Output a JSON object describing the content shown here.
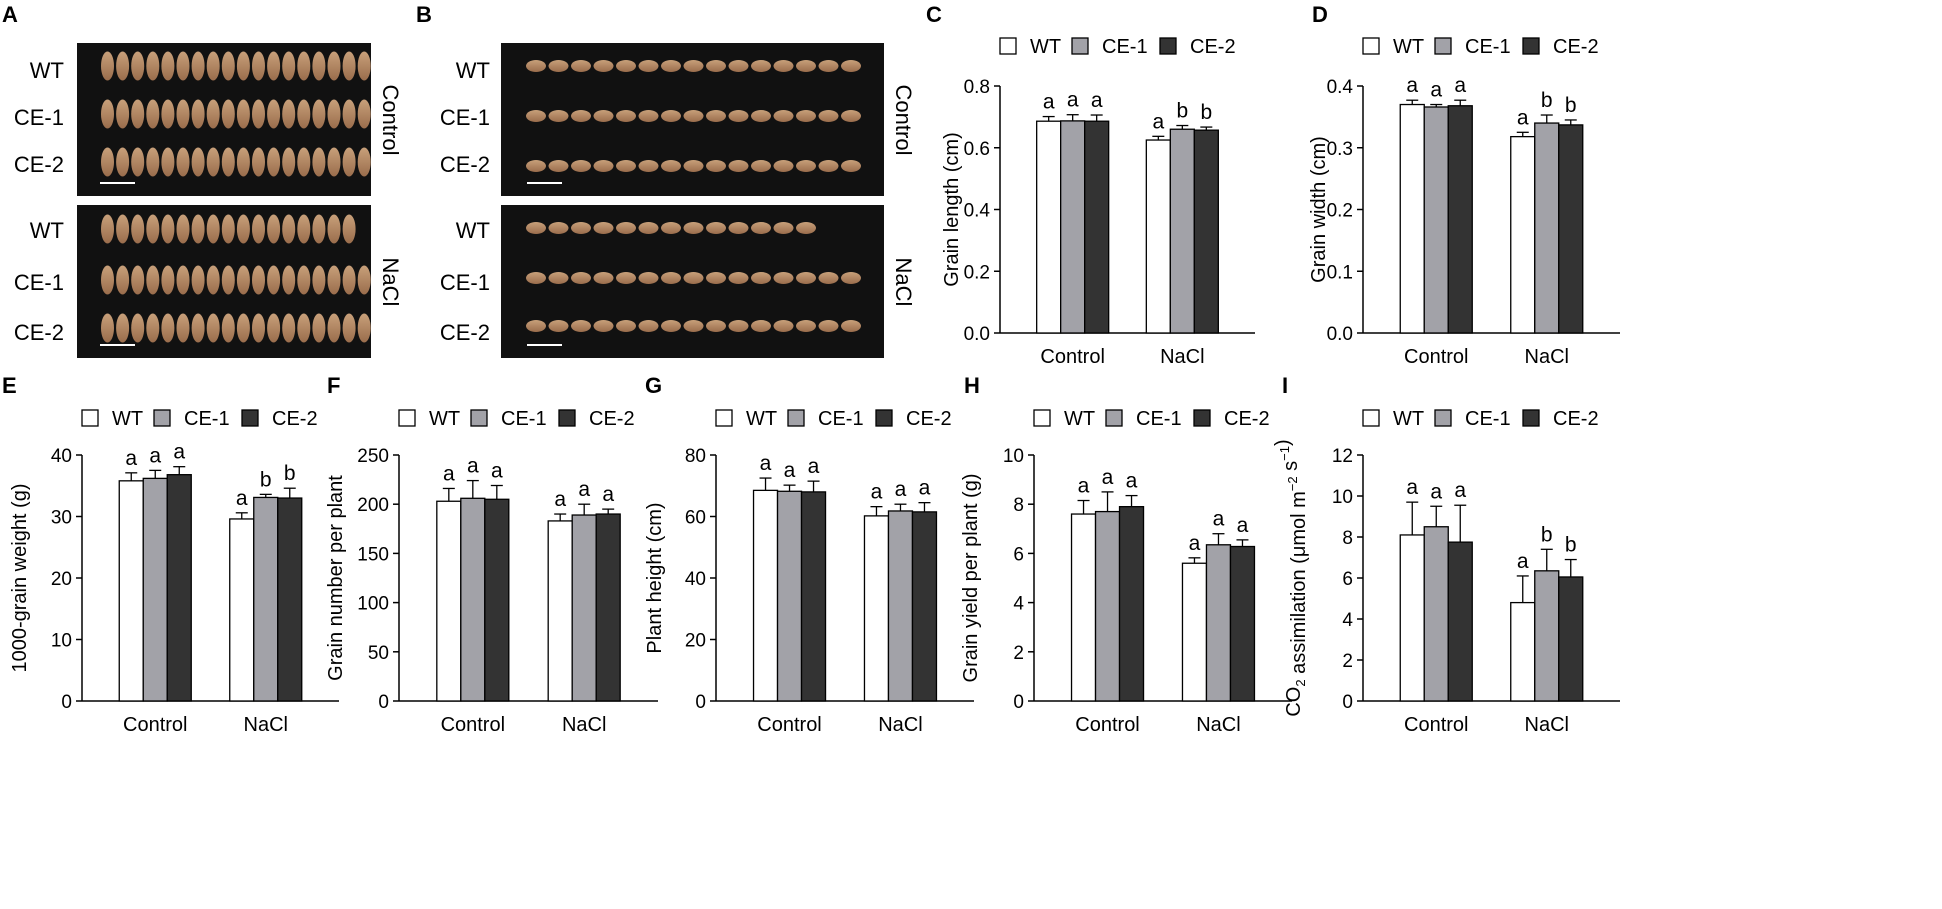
{
  "colors": {
    "WT": "#ffffff",
    "CE-1": "#a2a2a8",
    "CE-2": "#333333",
    "photo_bg": "#111111",
    "grain": "#c8a07a",
    "grain_dark": "#9a6d4c"
  },
  "photo_panels": [
    {
      "letter": "A",
      "blocks": [
        {
          "condition": "Control",
          "rows": [
            {
              "label": "WT",
              "grains": 18
            },
            {
              "label": "CE-1",
              "grains": 18
            },
            {
              "label": "CE-2",
              "grains": 18
            }
          ]
        },
        {
          "condition": "NaCl",
          "rows": [
            {
              "label": "WT",
              "grains": 17
            },
            {
              "label": "CE-1",
              "grains": 18
            },
            {
              "label": "CE-2",
              "grains": 18
            }
          ]
        }
      ]
    },
    {
      "letter": "B",
      "blocks": [
        {
          "condition": "Control",
          "rows": [
            {
              "label": "WT",
              "grains": 15
            },
            {
              "label": "CE-1",
              "grains": 15
            },
            {
              "label": "CE-2",
              "grains": 15
            }
          ]
        },
        {
          "condition": "NaCl",
          "rows": [
            {
              "label": "WT",
              "grains": 13
            },
            {
              "label": "CE-1",
              "grains": 15
            },
            {
              "label": "CE-2",
              "grains": 15
            }
          ]
        }
      ]
    }
  ],
  "chart_data": [
    {
      "letter": "C",
      "type": "bar",
      "categories": [
        "Control",
        "NaCl"
      ],
      "legend": [
        "WT",
        "CE-1",
        "CE-2"
      ],
      "ylabel": "Grain length (cm)",
      "ylim": [
        0,
        0.8
      ],
      "yticks": [
        "0.0",
        "0.2",
        "0.4",
        "0.6",
        "0.8"
      ],
      "series": [
        {
          "name": "WT",
          "values": [
            0.686,
            0.625
          ],
          "errors": [
            0.015,
            0.012
          ],
          "letters": [
            "a",
            "a"
          ]
        },
        {
          "name": "CE-1",
          "values": [
            0.687,
            0.66
          ],
          "errors": [
            0.02,
            0.012
          ],
          "letters": [
            "a",
            "b"
          ]
        },
        {
          "name": "CE-2",
          "values": [
            0.686,
            0.657
          ],
          "errors": [
            0.02,
            0.01
          ],
          "letters": [
            "a",
            "b"
          ]
        }
      ]
    },
    {
      "letter": "D",
      "type": "bar",
      "categories": [
        "Control",
        "NaCl"
      ],
      "legend": [
        "WT",
        "CE-1",
        "CE-2"
      ],
      "ylabel": "Grain width (cm)",
      "ylim": [
        0,
        0.4
      ],
      "yticks": [
        "0.0",
        "0.1",
        "0.2",
        "0.3",
        "0.4"
      ],
      "series": [
        {
          "name": "WT",
          "values": [
            0.37,
            0.318
          ],
          "errors": [
            0.007,
            0.007
          ],
          "letters": [
            "a",
            "a"
          ]
        },
        {
          "name": "CE-1",
          "values": [
            0.366,
            0.34
          ],
          "errors": [
            0.004,
            0.013
          ],
          "letters": [
            "a",
            "b"
          ]
        },
        {
          "name": "CE-2",
          "values": [
            0.368,
            0.337
          ],
          "errors": [
            0.009,
            0.008
          ],
          "letters": [
            "a",
            "b"
          ]
        }
      ]
    },
    {
      "letter": "E",
      "type": "bar",
      "categories": [
        "Control",
        "NaCl"
      ],
      "legend": [
        "WT",
        "CE-1",
        "CE-2"
      ],
      "ylabel": "1000-grain weight (g)",
      "ylim": [
        0,
        40
      ],
      "yticks": [
        "0",
        "10",
        "20",
        "30",
        "40"
      ],
      "series": [
        {
          "name": "WT",
          "values": [
            35.8,
            29.6
          ],
          "errors": [
            1.3,
            1.0
          ],
          "letters": [
            "a",
            "a"
          ]
        },
        {
          "name": "CE-1",
          "values": [
            36.2,
            33.1
          ],
          "errors": [
            1.3,
            0.5
          ],
          "letters": [
            "a",
            "b"
          ]
        },
        {
          "name": "CE-2",
          "values": [
            36.8,
            33.0
          ],
          "errors": [
            1.3,
            1.6
          ],
          "letters": [
            "a",
            "b"
          ]
        }
      ]
    },
    {
      "letter": "F",
      "type": "bar",
      "categories": [
        "Control",
        "NaCl"
      ],
      "legend": [
        "WT",
        "CE-1",
        "CE-2"
      ],
      "ylabel": "Grain number per plant",
      "ylim": [
        0,
        250
      ],
      "yticks": [
        "0",
        "50",
        "100",
        "150",
        "200",
        "250"
      ],
      "series": [
        {
          "name": "WT",
          "values": [
            203,
            183
          ],
          "errors": [
            13,
            7
          ],
          "letters": [
            "a",
            "a"
          ]
        },
        {
          "name": "CE-1",
          "values": [
            206,
            189
          ],
          "errors": [
            18,
            11
          ],
          "letters": [
            "a",
            "a"
          ]
        },
        {
          "name": "CE-2",
          "values": [
            205,
            190
          ],
          "errors": [
            14,
            5
          ],
          "letters": [
            "a",
            "a"
          ]
        }
      ]
    },
    {
      "letter": "G",
      "type": "bar",
      "categories": [
        "Control",
        "NaCl"
      ],
      "legend": [
        "WT",
        "CE-1",
        "CE-2"
      ],
      "ylabel": "Plant height (cm)",
      "ylim": [
        0,
        80
      ],
      "yticks": [
        "0",
        "20",
        "40",
        "60",
        "80"
      ],
      "series": [
        {
          "name": "WT",
          "values": [
            68.5,
            60.2
          ],
          "errors": [
            4.0,
            3.0
          ],
          "letters": [
            "a",
            "a"
          ]
        },
        {
          "name": "CE-1",
          "values": [
            68.2,
            61.8
          ],
          "errors": [
            2.0,
            2.2
          ],
          "letters": [
            "a",
            "a"
          ]
        },
        {
          "name": "CE-2",
          "values": [
            68.0,
            61.5
          ],
          "errors": [
            3.5,
            3.0
          ],
          "letters": [
            "a",
            "a"
          ]
        }
      ]
    },
    {
      "letter": "H",
      "type": "bar",
      "categories": [
        "Control",
        "NaCl"
      ],
      "legend": [
        "WT",
        "CE-1",
        "CE-2"
      ],
      "ylabel": "Grain yield per plant (g)",
      "ylim": [
        0,
        10
      ],
      "yticks": [
        "0",
        "2",
        "4",
        "6",
        "8",
        "10"
      ],
      "series": [
        {
          "name": "WT",
          "values": [
            7.6,
            5.6
          ],
          "errors": [
            0.55,
            0.22
          ],
          "letters": [
            "a",
            "a"
          ]
        },
        {
          "name": "CE-1",
          "values": [
            7.7,
            6.35
          ],
          "errors": [
            0.8,
            0.45
          ],
          "letters": [
            "a",
            "a"
          ]
        },
        {
          "name": "CE-2",
          "values": [
            7.9,
            6.28
          ],
          "errors": [
            0.45,
            0.27
          ],
          "letters": [
            "a",
            "a"
          ]
        }
      ]
    },
    {
      "letter": "I",
      "type": "bar",
      "categories": [
        "Control",
        "NaCl"
      ],
      "legend": [
        "WT",
        "CE-1",
        "CE-2"
      ],
      "ylabel": "CO2 assimilation (μmol m-2 s-1)",
      "ylim": [
        0,
        12
      ],
      "yticks": [
        "0",
        "2",
        "4",
        "6",
        "8",
        "10",
        "12"
      ],
      "series": [
        {
          "name": "WT",
          "values": [
            8.1,
            4.8
          ],
          "errors": [
            1.6,
            1.3
          ],
          "letters": [
            "a",
            "a"
          ]
        },
        {
          "name": "CE-1",
          "values": [
            8.5,
            6.35
          ],
          "errors": [
            1.0,
            1.05
          ],
          "letters": [
            "a",
            "b"
          ]
        },
        {
          "name": "CE-2",
          "values": [
            7.75,
            6.05
          ],
          "errors": [
            1.8,
            0.85
          ],
          "letters": [
            "a",
            "b"
          ]
        }
      ]
    }
  ]
}
